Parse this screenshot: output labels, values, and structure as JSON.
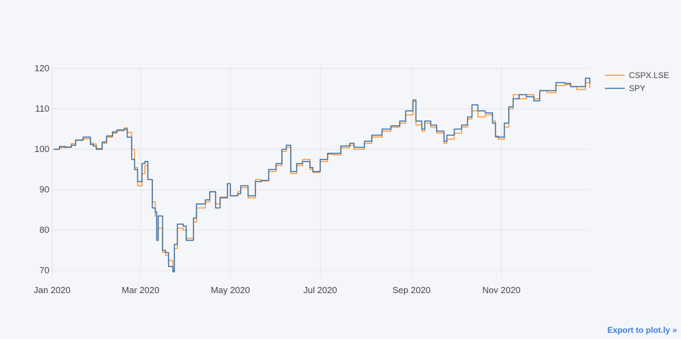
{
  "chart_data": {
    "type": "line",
    "title": "",
    "xlabel": "",
    "ylabel": "",
    "x_ticks": [
      "Jan 2020",
      "Mar 2020",
      "May 2020",
      "Jul 2020",
      "Sep 2020",
      "Nov 2020"
    ],
    "y_ticks": [
      70,
      80,
      90,
      100,
      110,
      120
    ],
    "ylim": [
      68.5,
      120.5
    ],
    "xlim": [
      "2020-01-01",
      "2020-12-31"
    ],
    "grid": true,
    "legend_position": "top-right",
    "series": [
      {
        "name": "CSPX.LSE",
        "color": "#ff9933",
        "points": [
          [
            "2020-01-02",
            100.0
          ],
          [
            "2020-01-06",
            100.4
          ],
          [
            "2020-01-10",
            100.6
          ],
          [
            "2020-01-14",
            101.4
          ],
          [
            "2020-01-17",
            102.2
          ],
          [
            "2020-01-22",
            102.6
          ],
          [
            "2020-01-27",
            101.6
          ],
          [
            "2020-01-29",
            101.3
          ],
          [
            "2020-01-31",
            100.2
          ],
          [
            "2020-02-04",
            101.5
          ],
          [
            "2020-02-07",
            103.0
          ],
          [
            "2020-02-11",
            104.0
          ],
          [
            "2020-02-14",
            104.6
          ],
          [
            "2020-02-19",
            105.3
          ],
          [
            "2020-02-21",
            104.2
          ],
          [
            "2020-02-24",
            100.0
          ],
          [
            "2020-02-26",
            95.5
          ],
          [
            "2020-02-28",
            91.0
          ],
          [
            "2020-03-02",
            94.0
          ],
          [
            "2020-03-04",
            96.0
          ],
          [
            "2020-03-06",
            92.5
          ],
          [
            "2020-03-09",
            87.0
          ],
          [
            "2020-03-11",
            83.5
          ],
          [
            "2020-03-12",
            78.0
          ],
          [
            "2020-03-13",
            80.5
          ],
          [
            "2020-03-16",
            74.5
          ],
          [
            "2020-03-18",
            73.8
          ],
          [
            "2020-03-20",
            72.5
          ],
          [
            "2020-03-23",
            70.0
          ],
          [
            "2020-03-24",
            75.5
          ],
          [
            "2020-03-26",
            80.5
          ],
          [
            "2020-03-30",
            80.0
          ],
          [
            "2020-04-01",
            78.0
          ],
          [
            "2020-04-06",
            82.0
          ],
          [
            "2020-04-08",
            85.5
          ],
          [
            "2020-04-14",
            87.0
          ],
          [
            "2020-04-17",
            89.5
          ],
          [
            "2020-04-21",
            86.5
          ],
          [
            "2020-04-24",
            88.2
          ],
          [
            "2020-04-29",
            91.5
          ],
          [
            "2020-05-01",
            88.5
          ],
          [
            "2020-05-06",
            89.5
          ],
          [
            "2020-05-08",
            90.5
          ],
          [
            "2020-05-13",
            88.0
          ],
          [
            "2020-05-18",
            92.5
          ],
          [
            "2020-05-22",
            92.2
          ],
          [
            "2020-05-27",
            94.5
          ],
          [
            "2020-06-01",
            96.0
          ],
          [
            "2020-06-05",
            99.5
          ],
          [
            "2020-06-08",
            100.5
          ],
          [
            "2020-06-11",
            94.0
          ],
          [
            "2020-06-15",
            96.0
          ],
          [
            "2020-06-19",
            97.5
          ],
          [
            "2020-06-24",
            95.0
          ],
          [
            "2020-06-26",
            94.3
          ],
          [
            "2020-07-01",
            97.0
          ],
          [
            "2020-07-06",
            98.8
          ],
          [
            "2020-07-10",
            98.6
          ],
          [
            "2020-07-15",
            100.4
          ],
          [
            "2020-07-21",
            101.0
          ],
          [
            "2020-07-24",
            100.0
          ],
          [
            "2020-07-31",
            101.5
          ],
          [
            "2020-08-05",
            103.0
          ],
          [
            "2020-08-12",
            104.5
          ],
          [
            "2020-08-18",
            105.5
          ],
          [
            "2020-08-24",
            106.5
          ],
          [
            "2020-08-28",
            108.5
          ],
          [
            "2020-09-02",
            111.8
          ],
          [
            "2020-09-04",
            106.0
          ],
          [
            "2020-09-08",
            104.5
          ],
          [
            "2020-09-10",
            106.5
          ],
          [
            "2020-09-14",
            105.5
          ],
          [
            "2020-09-18",
            104.0
          ],
          [
            "2020-09-23",
            101.5
          ],
          [
            "2020-09-25",
            102.5
          ],
          [
            "2020-09-30",
            104.0
          ],
          [
            "2020-10-05",
            105.5
          ],
          [
            "2020-10-09",
            107.5
          ],
          [
            "2020-10-12",
            109.5
          ],
          [
            "2020-10-16",
            108.0
          ],
          [
            "2020-10-21",
            108.5
          ],
          [
            "2020-10-26",
            107.0
          ],
          [
            "2020-10-28",
            103.0
          ],
          [
            "2020-10-30",
            102.5
          ],
          [
            "2020-11-03",
            105.5
          ],
          [
            "2020-11-06",
            110.0
          ],
          [
            "2020-11-09",
            113.5
          ],
          [
            "2020-11-13",
            112.5
          ],
          [
            "2020-11-18",
            113.5
          ],
          [
            "2020-11-23",
            112.5
          ],
          [
            "2020-11-27",
            114.5
          ],
          [
            "2020-12-02",
            114.0
          ],
          [
            "2020-12-08",
            115.8
          ],
          [
            "2020-12-14",
            116.0
          ],
          [
            "2020-12-18",
            115.5
          ],
          [
            "2020-12-22",
            114.8
          ],
          [
            "2020-12-28",
            116.5
          ],
          [
            "2020-12-31",
            115.2
          ]
        ]
      },
      {
        "name": "SPY",
        "color": "#3c6fa0",
        "points": [
          [
            "2020-01-02",
            100.0
          ],
          [
            "2020-01-06",
            100.7
          ],
          [
            "2020-01-10",
            100.5
          ],
          [
            "2020-01-14",
            101.0
          ],
          [
            "2020-01-17",
            102.3
          ],
          [
            "2020-01-22",
            103.0
          ],
          [
            "2020-01-27",
            101.2
          ],
          [
            "2020-01-29",
            100.8
          ],
          [
            "2020-01-31",
            100.0
          ],
          [
            "2020-02-04",
            101.8
          ],
          [
            "2020-02-07",
            103.3
          ],
          [
            "2020-02-11",
            104.3
          ],
          [
            "2020-02-14",
            104.8
          ],
          [
            "2020-02-19",
            105.0
          ],
          [
            "2020-02-21",
            103.0
          ],
          [
            "2020-02-24",
            97.5
          ],
          [
            "2020-02-26",
            95.0
          ],
          [
            "2020-02-28",
            92.0
          ],
          [
            "2020-03-02",
            96.5
          ],
          [
            "2020-03-04",
            97.0
          ],
          [
            "2020-03-06",
            92.5
          ],
          [
            "2020-03-09",
            85.5
          ],
          [
            "2020-03-11",
            84.5
          ],
          [
            "2020-03-12",
            77.5
          ],
          [
            "2020-03-13",
            83.5
          ],
          [
            "2020-03-16",
            75.0
          ],
          [
            "2020-03-18",
            74.5
          ],
          [
            "2020-03-20",
            71.0
          ],
          [
            "2020-03-23",
            69.7
          ],
          [
            "2020-03-24",
            76.5
          ],
          [
            "2020-03-26",
            81.5
          ],
          [
            "2020-03-30",
            81.0
          ],
          [
            "2020-04-01",
            77.5
          ],
          [
            "2020-04-06",
            83.0
          ],
          [
            "2020-04-08",
            86.5
          ],
          [
            "2020-04-14",
            87.5
          ],
          [
            "2020-04-17",
            89.5
          ],
          [
            "2020-04-21",
            85.5
          ],
          [
            "2020-04-24",
            88.0
          ],
          [
            "2020-04-29",
            91.5
          ],
          [
            "2020-05-01",
            88.5
          ],
          [
            "2020-05-06",
            89.0
          ],
          [
            "2020-05-08",
            91.0
          ],
          [
            "2020-05-13",
            88.5
          ],
          [
            "2020-05-18",
            92.0
          ],
          [
            "2020-05-22",
            92.3
          ],
          [
            "2020-05-27",
            95.0
          ],
          [
            "2020-06-01",
            96.5
          ],
          [
            "2020-06-05",
            100.0
          ],
          [
            "2020-06-08",
            101.0
          ],
          [
            "2020-06-11",
            94.5
          ],
          [
            "2020-06-15",
            96.5
          ],
          [
            "2020-06-19",
            97.0
          ],
          [
            "2020-06-24",
            95.5
          ],
          [
            "2020-06-26",
            94.5
          ],
          [
            "2020-07-01",
            97.5
          ],
          [
            "2020-07-06",
            99.0
          ],
          [
            "2020-07-10",
            99.0
          ],
          [
            "2020-07-15",
            100.8
          ],
          [
            "2020-07-21",
            101.5
          ],
          [
            "2020-07-24",
            100.5
          ],
          [
            "2020-07-31",
            102.0
          ],
          [
            "2020-08-05",
            103.5
          ],
          [
            "2020-08-12",
            105.0
          ],
          [
            "2020-08-18",
            105.8
          ],
          [
            "2020-08-24",
            107.0
          ],
          [
            "2020-08-28",
            109.5
          ],
          [
            "2020-09-02",
            112.2
          ],
          [
            "2020-09-04",
            107.0
          ],
          [
            "2020-09-08",
            105.0
          ],
          [
            "2020-09-10",
            107.0
          ],
          [
            "2020-09-14",
            106.0
          ],
          [
            "2020-09-18",
            104.5
          ],
          [
            "2020-09-23",
            102.0
          ],
          [
            "2020-09-25",
            103.5
          ],
          [
            "2020-09-30",
            105.0
          ],
          [
            "2020-10-05",
            106.0
          ],
          [
            "2020-10-09",
            108.0
          ],
          [
            "2020-10-12",
            111.0
          ],
          [
            "2020-10-16",
            109.5
          ],
          [
            "2020-10-21",
            109.0
          ],
          [
            "2020-10-26",
            106.5
          ],
          [
            "2020-10-28",
            103.2
          ],
          [
            "2020-10-30",
            103.0
          ],
          [
            "2020-11-03",
            106.5
          ],
          [
            "2020-11-06",
            110.5
          ],
          [
            "2020-11-09",
            112.5
          ],
          [
            "2020-11-13",
            113.5
          ],
          [
            "2020-11-18",
            113.0
          ],
          [
            "2020-11-23",
            112.0
          ],
          [
            "2020-11-27",
            114.5
          ],
          [
            "2020-12-02",
            114.5
          ],
          [
            "2020-12-08",
            116.5
          ],
          [
            "2020-12-14",
            116.3
          ],
          [
            "2020-12-18",
            115.5
          ],
          [
            "2020-12-22",
            115.5
          ],
          [
            "2020-12-28",
            117.6
          ],
          [
            "2020-12-31",
            116.3
          ]
        ]
      }
    ]
  },
  "export": {
    "label": "Export to plot.ly »"
  }
}
